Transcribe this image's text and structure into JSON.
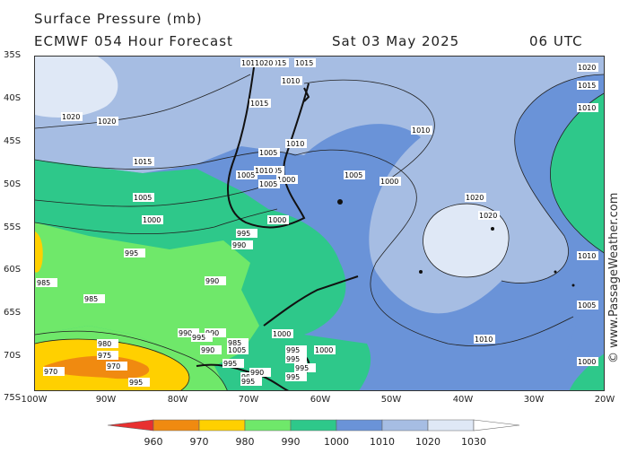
{
  "header": {
    "title": "Surface Pressure (mb)",
    "model": "ECMWF 054 Hour Forecast",
    "date": "Sat 03 May 2025",
    "time": "06 UTC"
  },
  "credit": "© www.PassageWeather.com",
  "lat_labels": [
    "35S",
    "40S",
    "45S",
    "50S",
    "55S",
    "60S",
    "65S",
    "70S",
    "75S"
  ],
  "lon_labels": [
    "100W",
    "90W",
    "80W",
    "70W",
    "60W",
    "50W",
    "40W",
    "30W",
    "20W"
  ],
  "legend": {
    "ticks": [
      "960",
      "970",
      "980",
      "990",
      "1000",
      "1010",
      "1020",
      "1030"
    ],
    "colors": [
      "#e83030",
      "#f08a10",
      "#ffd000",
      "#6fe86a",
      "#2ec88a",
      "#6a93d8",
      "#a6bde3",
      "#dfe8f6",
      "#ffffff"
    ]
  },
  "isobar_labels": [
    "1020",
    "1015",
    "1015",
    "1015",
    "1010",
    "1010",
    "1005",
    "1005",
    "1005",
    "1005",
    "1000",
    "1000",
    "1000",
    "1000",
    "995",
    "995",
    "990",
    "990",
    "985",
    "985",
    "980",
    "975",
    "970",
    "970",
    "1020",
    "1015",
    "1010",
    "1020",
    "1020",
    "1010",
    "1000",
    "1005",
    "1020",
    "1015",
    "1010",
    "1010",
    "1005",
    "1000",
    "990",
    "985",
    "995",
    "995",
    "990",
    "995",
    "990",
    "995",
    "995",
    "995",
    "995",
    "1000",
    "995",
    "1015",
    "1005",
    "1010",
    "1015",
    "1020",
    "1005",
    "995",
    "990"
  ],
  "colors": {
    "ocean_995": "#2ec88a",
    "ocean_1005": "#6a93d8",
    "ocean_1015": "#a6bde3",
    "high": "#dfe8f6",
    "land": "#111111"
  }
}
